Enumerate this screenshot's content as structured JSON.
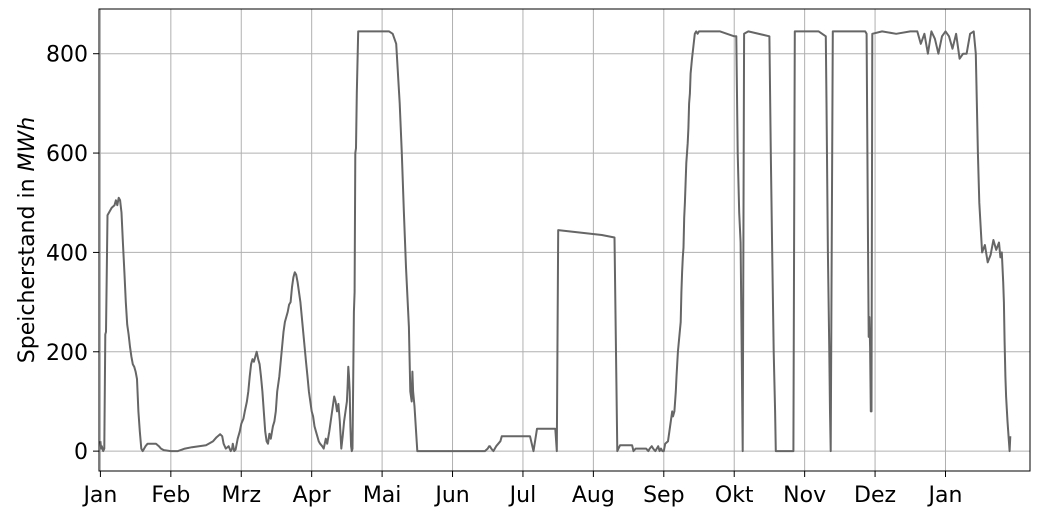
{
  "chart_data": {
    "type": "line",
    "title": "",
    "xlabel": "",
    "ylabel_prefix": "Speicherstand in ",
    "ylabel_unit": "MWh",
    "x_ticks": [
      "Jan",
      "Feb",
      "Mrz",
      "Apr",
      "Mai",
      "Jun",
      "Jul",
      "Aug",
      "Sep",
      "Okt",
      "Nov",
      "Dez",
      "Jan"
    ],
    "y_ticks": [
      0,
      200,
      400,
      600,
      800
    ],
    "xlim": [
      -0.02,
      13.2
    ],
    "ylim": [
      -40,
      890
    ],
    "grid": true,
    "series": [
      {
        "color": "#666666",
        "points": [
          [
            0.0,
            20
          ],
          [
            0.01,
            5
          ],
          [
            0.02,
            10
          ],
          [
            0.04,
            0
          ],
          [
            0.055,
            5
          ],
          [
            0.07,
            235
          ],
          [
            0.08,
            240
          ],
          [
            0.1,
            475
          ],
          [
            0.12,
            480
          ],
          [
            0.14,
            485
          ],
          [
            0.16,
            490
          ],
          [
            0.2,
            495
          ],
          [
            0.22,
            505
          ],
          [
            0.24,
            495
          ],
          [
            0.26,
            510
          ],
          [
            0.28,
            505
          ],
          [
            0.3,
            480
          ],
          [
            0.32,
            420
          ],
          [
            0.34,
            360
          ],
          [
            0.36,
            300
          ],
          [
            0.38,
            255
          ],
          [
            0.4,
            235
          ],
          [
            0.42,
            210
          ],
          [
            0.44,
            190
          ],
          [
            0.46,
            175
          ],
          [
            0.48,
            170
          ],
          [
            0.5,
            160
          ],
          [
            0.52,
            145
          ],
          [
            0.54,
            80
          ],
          [
            0.56,
            40
          ],
          [
            0.58,
            5
          ],
          [
            0.6,
            0
          ],
          [
            0.64,
            10
          ],
          [
            0.67,
            15
          ],
          [
            0.72,
            15
          ],
          [
            0.79,
            15
          ],
          [
            0.83,
            10
          ],
          [
            0.86,
            5
          ],
          [
            0.9,
            2
          ],
          [
            1.0,
            0
          ],
          [
            1.1,
            0
          ],
          [
            1.2,
            5
          ],
          [
            1.3,
            8
          ],
          [
            1.4,
            10
          ],
          [
            1.5,
            12
          ],
          [
            1.55,
            16
          ],
          [
            1.6,
            20
          ],
          [
            1.65,
            28
          ],
          [
            1.7,
            34
          ],
          [
            1.73,
            30
          ],
          [
            1.75,
            15
          ],
          [
            1.78,
            5
          ],
          [
            1.82,
            10
          ],
          [
            1.85,
            0
          ],
          [
            1.87,
            5
          ],
          [
            1.88,
            15
          ],
          [
            1.9,
            0
          ],
          [
            1.92,
            3
          ],
          [
            1.95,
            25
          ],
          [
            1.98,
            40
          ],
          [
            2.0,
            55
          ],
          [
            2.03,
            65
          ],
          [
            2.05,
            80
          ],
          [
            2.08,
            100
          ],
          [
            2.1,
            120
          ],
          [
            2.12,
            150
          ],
          [
            2.14,
            175
          ],
          [
            2.16,
            185
          ],
          [
            2.18,
            180
          ],
          [
            2.2,
            190
          ],
          [
            2.22,
            200
          ],
          [
            2.24,
            185
          ],
          [
            2.26,
            175
          ],
          [
            2.28,
            150
          ],
          [
            2.3,
            120
          ],
          [
            2.32,
            80
          ],
          [
            2.34,
            40
          ],
          [
            2.36,
            20
          ],
          [
            2.38,
            15
          ],
          [
            2.4,
            35
          ],
          [
            2.42,
            25
          ],
          [
            2.45,
            50
          ],
          [
            2.47,
            60
          ],
          [
            2.49,
            80
          ],
          [
            2.51,
            120
          ],
          [
            2.54,
            150
          ],
          [
            2.56,
            180
          ],
          [
            2.58,
            210
          ],
          [
            2.6,
            240
          ],
          [
            2.62,
            260
          ],
          [
            2.64,
            270
          ],
          [
            2.66,
            280
          ],
          [
            2.68,
            295
          ],
          [
            2.7,
            300
          ],
          [
            2.72,
            330
          ],
          [
            2.74,
            350
          ],
          [
            2.76,
            360
          ],
          [
            2.78,
            355
          ],
          [
            2.8,
            340
          ],
          [
            2.82,
            320
          ],
          [
            2.84,
            300
          ],
          [
            2.86,
            270
          ],
          [
            2.88,
            240
          ],
          [
            2.9,
            210
          ],
          [
            2.92,
            180
          ],
          [
            2.94,
            150
          ],
          [
            2.96,
            120
          ],
          [
            2.98,
            100
          ],
          [
            3.0,
            80
          ],
          [
            3.02,
            70
          ],
          [
            3.04,
            50
          ],
          [
            3.06,
            40
          ],
          [
            3.08,
            30
          ],
          [
            3.1,
            20
          ],
          [
            3.12,
            15
          ],
          [
            3.15,
            10
          ],
          [
            3.17,
            5
          ],
          [
            3.2,
            25
          ],
          [
            3.22,
            15
          ],
          [
            3.25,
            40
          ],
          [
            3.28,
            70
          ],
          [
            3.3,
            90
          ],
          [
            3.32,
            110
          ],
          [
            3.34,
            100
          ],
          [
            3.36,
            80
          ],
          [
            3.38,
            95
          ],
          [
            3.4,
            60
          ],
          [
            3.42,
            5
          ],
          [
            3.44,
            30
          ],
          [
            3.46,
            60
          ],
          [
            3.48,
            80
          ],
          [
            3.5,
            100
          ],
          [
            3.51,
            130
          ],
          [
            3.52,
            170
          ],
          [
            3.53,
            150
          ],
          [
            3.54,
            120
          ],
          [
            3.55,
            50
          ],
          [
            3.56,
            10
          ],
          [
            3.57,
            0
          ],
          [
            3.58,
            5
          ],
          [
            3.6,
            280
          ],
          [
            3.61,
            320
          ],
          [
            3.62,
            600
          ],
          [
            3.63,
            610
          ],
          [
            3.64,
            720
          ],
          [
            3.66,
            845
          ],
          [
            3.7,
            845
          ],
          [
            4.0,
            845
          ],
          [
            4.1,
            845
          ],
          [
            4.15,
            840
          ],
          [
            4.2,
            820
          ],
          [
            4.25,
            700
          ],
          [
            4.28,
            600
          ],
          [
            4.31,
            480
          ],
          [
            4.34,
            370
          ],
          [
            4.38,
            250
          ],
          [
            4.4,
            120
          ],
          [
            4.42,
            100
          ],
          [
            4.43,
            160
          ],
          [
            4.44,
            120
          ],
          [
            4.46,
            90
          ],
          [
            4.5,
            0
          ],
          [
            4.55,
            0
          ],
          [
            4.7,
            0
          ],
          [
            5.0,
            0
          ],
          [
            5.2,
            0
          ],
          [
            5.4,
            0
          ],
          [
            5.46,
            0
          ],
          [
            5.5,
            5
          ],
          [
            5.52,
            10
          ],
          [
            5.53,
            10
          ],
          [
            5.55,
            5
          ],
          [
            5.58,
            0
          ],
          [
            5.6,
            5
          ],
          [
            5.62,
            10
          ],
          [
            5.65,
            15
          ],
          [
            5.68,
            20
          ],
          [
            5.7,
            30
          ],
          [
            5.8,
            30
          ],
          [
            6.0,
            30
          ],
          [
            6.1,
            30
          ],
          [
            6.15,
            0
          ],
          [
            6.2,
            45
          ],
          [
            6.3,
            45
          ],
          [
            6.46,
            45
          ],
          [
            6.48,
            0
          ],
          [
            6.5,
            445
          ],
          [
            7.12,
            435
          ],
          [
            7.3,
            430
          ],
          [
            7.34,
            0
          ],
          [
            7.38,
            12
          ],
          [
            7.4,
            12
          ],
          [
            7.55,
            12
          ],
          [
            7.57,
            0
          ],
          [
            7.6,
            5
          ],
          [
            7.7,
            5
          ],
          [
            7.75,
            5
          ],
          [
            7.78,
            0
          ],
          [
            7.8,
            5
          ],
          [
            7.83,
            10
          ],
          [
            7.85,
            5
          ],
          [
            7.88,
            0
          ],
          [
            7.92,
            10
          ],
          [
            7.94,
            0
          ],
          [
            7.96,
            5
          ],
          [
            7.98,
            0
          ],
          [
            8.0,
            0
          ],
          [
            8.02,
            15
          ],
          [
            8.06,
            20
          ],
          [
            8.08,
            40
          ],
          [
            8.1,
            60
          ],
          [
            8.12,
            80
          ],
          [
            8.13,
            70
          ],
          [
            8.14,
            75
          ],
          [
            8.15,
            80
          ],
          [
            8.16,
            100
          ],
          [
            8.17,
            120
          ],
          [
            8.18,
            150
          ],
          [
            8.19,
            175
          ],
          [
            8.2,
            200
          ],
          [
            8.21,
            215
          ],
          [
            8.22,
            230
          ],
          [
            8.23,
            245
          ],
          [
            8.24,
            260
          ],
          [
            8.25,
            320
          ],
          [
            8.26,
            360
          ],
          [
            8.27,
            390
          ],
          [
            8.28,
            410
          ],
          [
            8.29,
            470
          ],
          [
            8.3,
            500
          ],
          [
            8.31,
            540
          ],
          [
            8.32,
            580
          ],
          [
            8.33,
            600
          ],
          [
            8.34,
            620
          ],
          [
            8.35,
            650
          ],
          [
            8.36,
            700
          ],
          [
            8.37,
            720
          ],
          [
            8.38,
            760
          ],
          [
            8.4,
            790
          ],
          [
            8.42,
            815
          ],
          [
            8.44,
            840
          ],
          [
            8.46,
            845
          ],
          [
            8.48,
            840
          ],
          [
            8.5,
            845
          ],
          [
            8.8,
            845
          ],
          [
            9.0,
            835
          ],
          [
            9.03,
            835
          ],
          [
            9.05,
            600
          ],
          [
            9.07,
            480
          ],
          [
            9.09,
            420
          ],
          [
            9.12,
            0
          ],
          [
            9.14,
            840
          ],
          [
            9.2,
            845
          ],
          [
            9.5,
            835
          ],
          [
            9.52,
            600
          ],
          [
            9.54,
            400
          ],
          [
            9.56,
            200
          ],
          [
            9.58,
            80
          ],
          [
            9.59,
            0
          ],
          [
            9.65,
            0
          ],
          [
            9.8,
            0
          ],
          [
            9.84,
            0
          ],
          [
            9.86,
            845
          ],
          [
            10.2,
            845
          ],
          [
            10.3,
            835
          ],
          [
            10.31,
            700
          ],
          [
            10.33,
            400
          ],
          [
            10.35,
            200
          ],
          [
            10.36,
            80
          ],
          [
            10.37,
            0
          ],
          [
            10.4,
            845
          ],
          [
            10.54,
            845
          ],
          [
            10.6,
            845
          ],
          [
            10.7,
            845
          ],
          [
            10.86,
            845
          ],
          [
            10.88,
            840
          ],
          [
            10.9,
            420
          ],
          [
            10.91,
            230
          ],
          [
            10.92,
            270
          ],
          [
            10.93,
            210
          ],
          [
            10.94,
            80
          ],
          [
            10.95,
            80
          ],
          [
            10.96,
            840
          ],
          [
            11.1,
            845
          ],
          [
            11.3,
            840
          ],
          [
            11.5,
            845
          ],
          [
            11.6,
            845
          ],
          [
            11.65,
            820
          ],
          [
            11.7,
            840
          ],
          [
            11.75,
            800
          ],
          [
            11.8,
            845
          ],
          [
            11.85,
            830
          ],
          [
            11.9,
            800
          ],
          [
            11.95,
            835
          ],
          [
            12.0,
            845
          ],
          [
            12.05,
            835
          ],
          [
            12.1,
            810
          ],
          [
            12.15,
            840
          ],
          [
            12.2,
            790
          ],
          [
            12.25,
            800
          ],
          [
            12.3,
            800
          ],
          [
            12.35,
            840
          ],
          [
            12.4,
            845
          ],
          [
            12.43,
            800
          ],
          [
            12.46,
            600
          ],
          [
            12.48,
            500
          ],
          [
            12.5,
            450
          ],
          [
            12.52,
            400
          ],
          [
            12.56,
            415
          ],
          [
            12.6,
            380
          ],
          [
            12.64,
            395
          ],
          [
            12.68,
            425
          ],
          [
            12.72,
            405
          ],
          [
            12.76,
            420
          ],
          [
            12.78,
            390
          ],
          [
            12.8,
            400
          ],
          [
            12.82,
            340
          ],
          [
            12.83,
            300
          ],
          [
            12.84,
            220
          ],
          [
            12.85,
            150
          ],
          [
            12.86,
            110
          ],
          [
            12.87,
            85
          ],
          [
            12.88,
            60
          ],
          [
            12.89,
            40
          ],
          [
            12.9,
            20
          ],
          [
            12.91,
            0
          ],
          [
            12.92,
            30
          ]
        ]
      }
    ]
  }
}
